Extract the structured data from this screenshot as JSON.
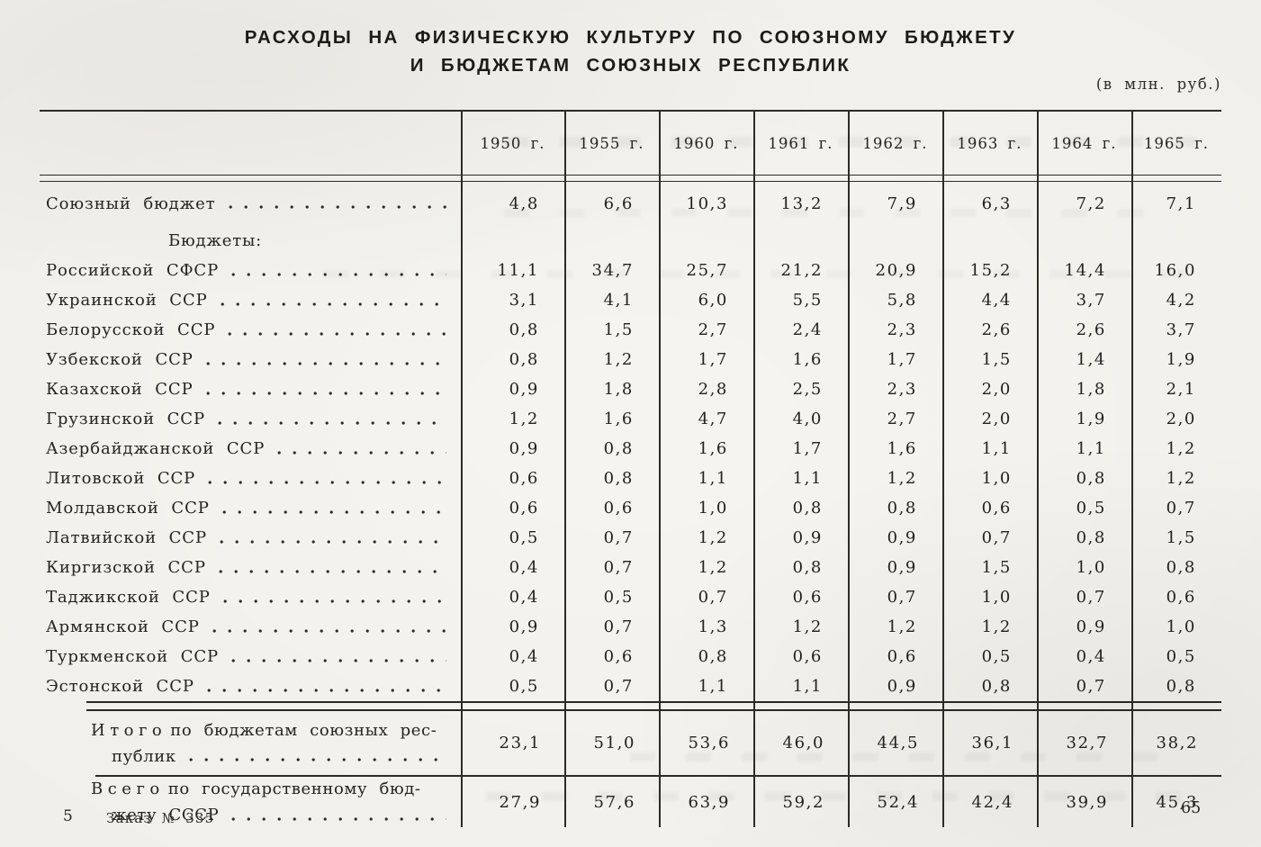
{
  "page": {
    "title_line1": "РАСХОДЫ НА ФИЗИЧЕСКУЮ КУЛЬТУРУ ПО СОЮЗНОМУ БЮДЖЕТУ",
    "title_line2": "И БЮДЖЕТАМ СОЮЗНЫХ РЕСПУБЛИК",
    "units_note": "(в млн. руб.)",
    "footer": {
      "sheet_number": "5",
      "order_note": "Заказ № 335",
      "page_number": "65"
    }
  },
  "table": {
    "col_headers": [
      "1950 г.",
      "1955 г.",
      "1960 г.",
      "1961 г.",
      "1962 г.",
      "1963 г.",
      "1964 г.",
      "1965 г."
    ],
    "rows": [
      {
        "label": "Союзный бюджет",
        "values": [
          "4,8",
          "6,6",
          "10,3",
          "13,2",
          "7,9",
          "6,3",
          "7,2",
          "7,1"
        ]
      },
      {
        "label": "Бюджеты:",
        "type": "subheading"
      },
      {
        "label": "Российской СФСР",
        "values": [
          "11,1",
          "34,7",
          "25,7",
          "21,2",
          "20,9",
          "15,2",
          "14,4",
          "16,0"
        ]
      },
      {
        "label": "Украинской ССР",
        "values": [
          "3,1",
          "4,1",
          "6,0",
          "5,5",
          "5,8",
          "4,4",
          "3,7",
          "4,2"
        ]
      },
      {
        "label": "Белорусской ССР",
        "values": [
          "0,8",
          "1,5",
          "2,7",
          "2,4",
          "2,3",
          "2,6",
          "2,6",
          "3,7"
        ]
      },
      {
        "label": "Узбекской ССР",
        "values": [
          "0,8",
          "1,2",
          "1,7",
          "1,6",
          "1,7",
          "1,5",
          "1,4",
          "1,9"
        ]
      },
      {
        "label": "Казахской ССР",
        "values": [
          "0,9",
          "1,8",
          "2,8",
          "2,5",
          "2,3",
          "2,0",
          "1,8",
          "2,1"
        ]
      },
      {
        "label": "Грузинской ССР",
        "values": [
          "1,2",
          "1,6",
          "4,7",
          "4,0",
          "2,7",
          "2,0",
          "1,9",
          "2,0"
        ]
      },
      {
        "label": "Азербайджанской ССР",
        "values": [
          "0,9",
          "0,8",
          "1,6",
          "1,7",
          "1,6",
          "1,1",
          "1,1",
          "1,2"
        ]
      },
      {
        "label": "Литовской ССР",
        "values": [
          "0,6",
          "0,8",
          "1,1",
          "1,1",
          "1,2",
          "1,0",
          "0,8",
          "1,2"
        ]
      },
      {
        "label": "Молдавской ССР",
        "values": [
          "0,6",
          "0,6",
          "1,0",
          "0,8",
          "0,8",
          "0,6",
          "0,5",
          "0,7"
        ]
      },
      {
        "label": "Латвийской ССР",
        "values": [
          "0,5",
          "0,7",
          "1,2",
          "0,9",
          "0,9",
          "0,7",
          "0,8",
          "1,5"
        ]
      },
      {
        "label": "Киргизской ССР",
        "values": [
          "0,4",
          "0,7",
          "1,2",
          "0,8",
          "0,9",
          "1,5",
          "1,0",
          "0,8"
        ]
      },
      {
        "label": "Таджикской ССР",
        "values": [
          "0,4",
          "0,5",
          "0,7",
          "0,6",
          "0,7",
          "1,0",
          "0,7",
          "0,6"
        ]
      },
      {
        "label": "Армянской ССР",
        "values": [
          "0,9",
          "0,7",
          "1,3",
          "1,2",
          "1,2",
          "1,2",
          "0,9",
          "1,0"
        ]
      },
      {
        "label": "Туркменской ССР",
        "values": [
          "0,4",
          "0,6",
          "0,8",
          "0,6",
          "0,6",
          "0,5",
          "0,4",
          "0,5"
        ]
      },
      {
        "label": "Эстонской ССР",
        "values": [
          "0,5",
          "0,7",
          "1,1",
          "1,1",
          "0,9",
          "0,8",
          "0,7",
          "0,8"
        ]
      }
    ],
    "totals": [
      {
        "word": "Итого",
        "rest": "по бюджетам союзных рес-",
        "line2": "публик",
        "values": [
          "23,1",
          "51,0",
          "53,6",
          "46,0",
          "44,5",
          "36,1",
          "32,7",
          "38,2"
        ]
      },
      {
        "word": "Всего",
        "rest": "по государственному бюд-",
        "line2": "жету СССР",
        "values": [
          "27,9",
          "57,6",
          "63,9",
          "59,2",
          "52,4",
          "42,4",
          "39,9",
          "45,3"
        ]
      }
    ]
  }
}
